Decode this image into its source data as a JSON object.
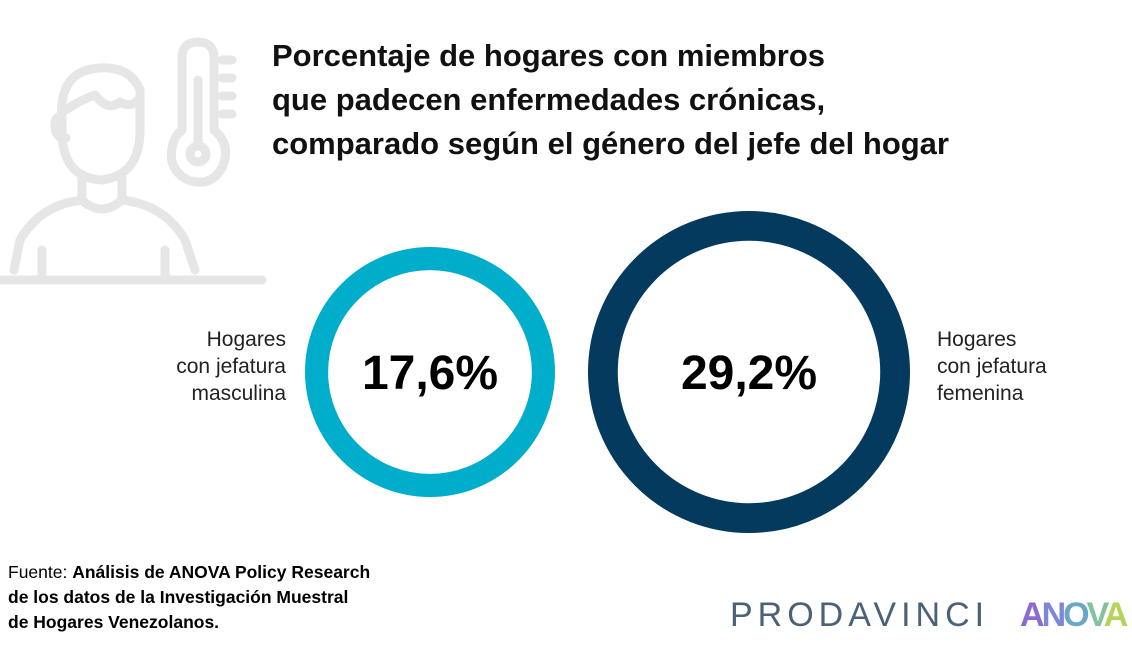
{
  "title": {
    "line1": "Porcentaje de hogares con miembros",
    "line2": "que padecen enfermedades crónicas,",
    "line3": "comparado según el género del jefe del hogar"
  },
  "chart_data": {
    "type": "pie",
    "title": "Porcentaje de hogares con miembros que padecen enfermedades crónicas, comparado según el género del jefe del hogar",
    "categories": [
      "Hogares con jefatura masculina",
      "Hogares con jefatura femenina"
    ],
    "values": [
      17.6,
      29.2
    ],
    "value_labels": [
      "17,6%",
      "29,2%"
    ],
    "colors": [
      "#00adcb",
      "#033a5d"
    ]
  },
  "labels": {
    "left": [
      "Hogares",
      "con jefatura",
      "masculina"
    ],
    "right": [
      "Hogares",
      "con jefatura",
      "femenina"
    ]
  },
  "source": {
    "prefix": "Fuente: ",
    "bold_line1": "Análisis de ANOVA Policy Research",
    "bold_line2": "de los datos de la Investigación Muestral",
    "bold_line3": "de Hogares Venezolanos."
  },
  "logos": {
    "prodavinci": "PRODAVINCI",
    "anova": [
      "A",
      "N",
      "O",
      "V",
      "A"
    ]
  },
  "icon": "person-thermometer-icon"
}
